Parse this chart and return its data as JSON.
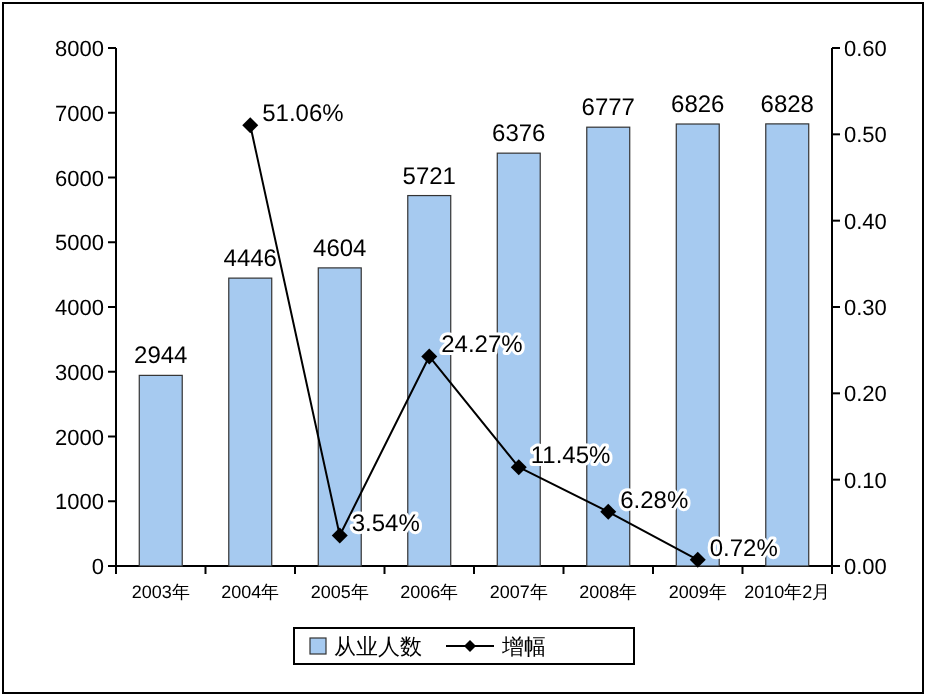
{
  "chart_data": {
    "type": "bar",
    "categories": [
      "2003年",
      "2004年",
      "2005年",
      "2006年",
      "2007年",
      "2008年",
      "2009年",
      "2010年2月"
    ],
    "series": [
      {
        "name": "从业人数",
        "color": "#a6caf0",
        "values": [
          2944,
          4446,
          4604,
          5721,
          6376,
          6777,
          6826,
          6828
        ],
        "value_labels": [
          "2944",
          "4446",
          "4604",
          "5721",
          "6376",
          "6777",
          "6826",
          "6828"
        ]
      },
      {
        "name": "增幅",
        "type": "line",
        "axis": "y2",
        "color": "#000000",
        "marker": "diamond",
        "line_style": "solid",
        "values": [
          null,
          0.5106,
          0.0354,
          0.2427,
          0.1145,
          0.0628,
          0.0072,
          null
        ],
        "value_labels": [
          null,
          "51.06%",
          "3.54%",
          "24.27%",
          "11.45%",
          "6.28%",
          "0.72%",
          null
        ]
      }
    ],
    "ylim": [
      0,
      8000
    ],
    "yticks": [
      0,
      1000,
      2000,
      3000,
      4000,
      5000,
      6000,
      7000,
      8000
    ],
    "y2lim": [
      0,
      0.6
    ],
    "y2ticks": [
      {
        "value": 0,
        "label": "0.00"
      },
      {
        "value": 0.1,
        "label": "0.10"
      },
      {
        "value": 0.2,
        "label": "0.20"
      },
      {
        "value": 0.3,
        "label": "0.30"
      },
      {
        "value": 0.4,
        "label": "0.40"
      },
      {
        "value": 0.5,
        "label": "0.50"
      },
      {
        "value": 0.6,
        "label": "0.60"
      }
    ],
    "grid": false,
    "legend": "bottom"
  }
}
